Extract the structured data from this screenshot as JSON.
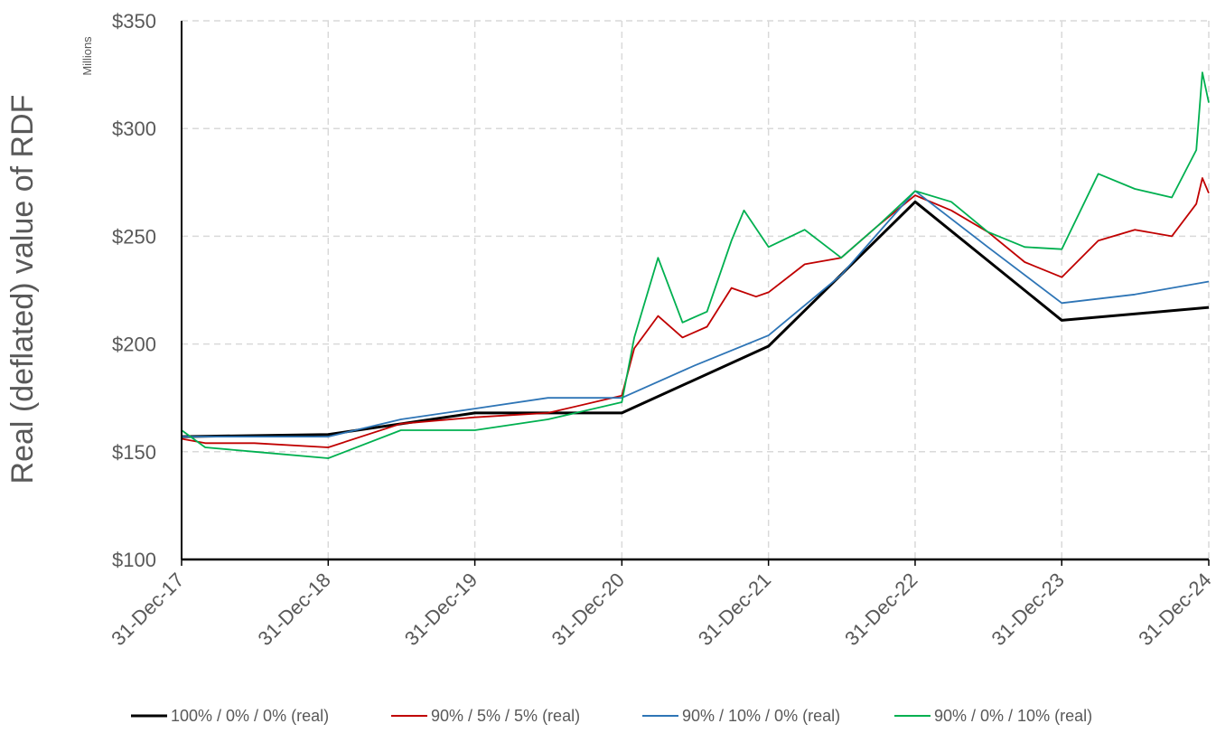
{
  "chart_data": {
    "type": "line",
    "title": "",
    "xlabel": "",
    "ylabel": "Real (deflated) value of RDF",
    "units_label": "Millions",
    "ylim": [
      100,
      350
    ],
    "y_ticks": [
      100,
      150,
      200,
      250,
      300,
      350
    ],
    "y_tick_labels": [
      "$100",
      "$150",
      "$200",
      "$250",
      "$300",
      "$350"
    ],
    "x_ticks": [
      "2017-12-31",
      "2018-12-31",
      "2019-12-31",
      "2020-12-31",
      "2021-12-31",
      "2022-12-31",
      "2023-12-31",
      "2024-12-31"
    ],
    "x_tick_labels": [
      "31-Dec-17",
      "31-Dec-18",
      "31-Dec-19",
      "31-Dec-20",
      "31-Dec-21",
      "31-Dec-22",
      "31-Dec-23",
      "31-Dec-24"
    ],
    "grid": true,
    "legend_position": "bottom",
    "series": [
      {
        "name": "100% / 0% / 0% (real)",
        "color": "#000000",
        "points": [
          [
            "2017-12-31",
            157
          ],
          [
            "2018-12-31",
            158
          ],
          [
            "2019-12-31",
            168
          ],
          [
            "2020-12-31",
            168
          ],
          [
            "2021-12-31",
            199
          ],
          [
            "2022-12-31",
            266
          ],
          [
            "2023-12-31",
            211
          ],
          [
            "2024-12-31",
            217
          ]
        ]
      },
      {
        "name": "90% / 5% / 5% (real)",
        "color": "#c00000",
        "points": [
          [
            "2017-12-31",
            156
          ],
          [
            "2018-02-28",
            154
          ],
          [
            "2018-06-30",
            154
          ],
          [
            "2018-12-31",
            152
          ],
          [
            "2019-06-30",
            163
          ],
          [
            "2019-12-31",
            166
          ],
          [
            "2020-06-30",
            168
          ],
          [
            "2020-12-31",
            176
          ],
          [
            "2021-01-31",
            198
          ],
          [
            "2021-03-31",
            213
          ],
          [
            "2021-05-31",
            203
          ],
          [
            "2021-07-31",
            208
          ],
          [
            "2021-09-30",
            226
          ],
          [
            "2021-11-30",
            222
          ],
          [
            "2021-12-31",
            224
          ],
          [
            "2022-03-31",
            237
          ],
          [
            "2022-06-30",
            240
          ],
          [
            "2022-09-30",
            255
          ],
          [
            "2022-12-31",
            269
          ],
          [
            "2023-03-31",
            262
          ],
          [
            "2023-06-30",
            252
          ],
          [
            "2023-09-30",
            238
          ],
          [
            "2023-12-31",
            231
          ],
          [
            "2024-03-31",
            248
          ],
          [
            "2024-06-30",
            253
          ],
          [
            "2024-09-30",
            250
          ],
          [
            "2024-11-30",
            265
          ],
          [
            "2024-12-15",
            277
          ],
          [
            "2024-12-31",
            270
          ]
        ]
      },
      {
        "name": "90% / 10% / 0% (real)",
        "color": "#2e75b6",
        "points": [
          [
            "2017-12-31",
            157
          ],
          [
            "2018-12-31",
            157
          ],
          [
            "2019-06-30",
            165
          ],
          [
            "2019-12-31",
            170
          ],
          [
            "2020-06-30",
            175
          ],
          [
            "2020-12-31",
            175
          ],
          [
            "2021-06-30",
            190
          ],
          [
            "2021-12-31",
            204
          ],
          [
            "2022-06-30",
            232
          ],
          [
            "2022-12-31",
            271
          ],
          [
            "2023-06-30",
            245
          ],
          [
            "2023-12-31",
            219
          ],
          [
            "2024-06-30",
            223
          ],
          [
            "2024-12-31",
            229
          ]
        ]
      },
      {
        "name": "90% / 0% / 10% (real)",
        "color": "#00b050",
        "points": [
          [
            "2017-12-31",
            160
          ],
          [
            "2018-02-28",
            152
          ],
          [
            "2018-06-30",
            150
          ],
          [
            "2018-12-31",
            147
          ],
          [
            "2019-06-30",
            160
          ],
          [
            "2019-12-31",
            160
          ],
          [
            "2020-06-30",
            165
          ],
          [
            "2020-12-31",
            173
          ],
          [
            "2021-01-31",
            203
          ],
          [
            "2021-03-31",
            240
          ],
          [
            "2021-05-31",
            210
          ],
          [
            "2021-07-31",
            215
          ],
          [
            "2021-09-30",
            248
          ],
          [
            "2021-10-31",
            262
          ],
          [
            "2021-12-31",
            245
          ],
          [
            "2022-03-31",
            253
          ],
          [
            "2022-06-30",
            240
          ],
          [
            "2022-09-30",
            255
          ],
          [
            "2022-12-31",
            271
          ],
          [
            "2023-03-31",
            266
          ],
          [
            "2023-06-30",
            252
          ],
          [
            "2023-09-30",
            245
          ],
          [
            "2023-12-31",
            244
          ],
          [
            "2024-03-31",
            279
          ],
          [
            "2024-06-30",
            272
          ],
          [
            "2024-09-30",
            268
          ],
          [
            "2024-11-30",
            290
          ],
          [
            "2024-12-15",
            326
          ],
          [
            "2024-12-31",
            312
          ]
        ]
      }
    ]
  }
}
